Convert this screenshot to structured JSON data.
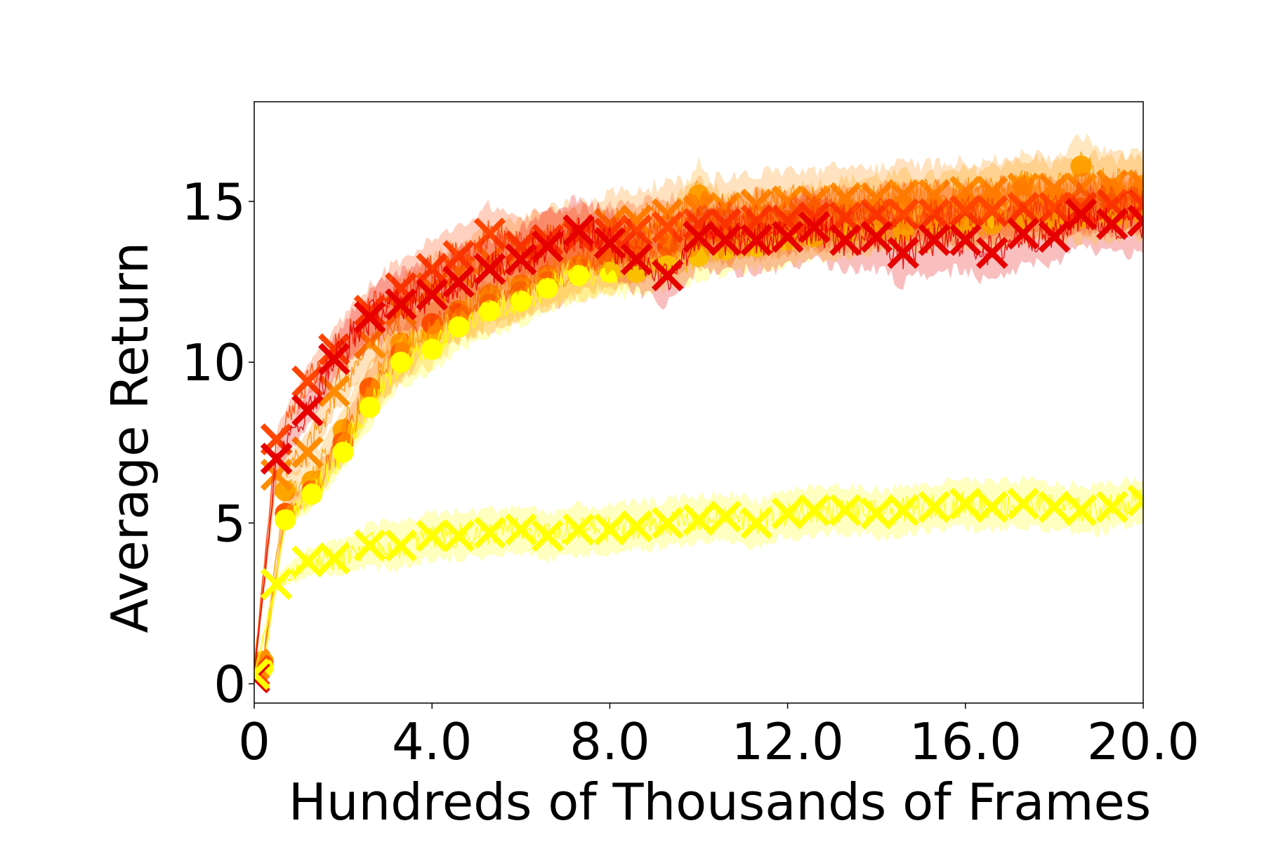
{
  "chart_data": {
    "type": "line",
    "title": "",
    "xlabel": "Hundreds of Thousands of Frames",
    "ylabel": "Average Return",
    "xlim": [
      0,
      20
    ],
    "ylim": [
      -0.6,
      18.1
    ],
    "x_ticks": [
      0,
      4,
      8,
      12,
      16,
      20
    ],
    "x_tick_labels": [
      "0",
      "4.0",
      "8.0",
      "12.0",
      "16.0",
      "20.0"
    ],
    "y_ticks": [
      0,
      5,
      10,
      15
    ],
    "y_tick_labels": [
      "0",
      "5",
      "10",
      "15"
    ],
    "grid": false,
    "legend": "none",
    "series": [
      {
        "color": "#ffa500",
        "marker": "circle",
        "band": 1.2,
        "x": [
          0,
          0.2,
          0.7,
          1.3,
          2.0,
          2.6,
          3.3,
          4.0,
          4.6,
          5.3,
          6.0,
          6.6,
          7.3,
          8.0,
          8.6,
          9.3,
          10.0,
          10.6,
          11.3,
          12.0,
          12.6,
          13.3,
          14.0,
          14.6,
          15.3,
          16.0,
          16.6,
          17.3,
          18.0,
          18.6,
          19.3,
          20.0
        ],
        "y": [
          0.6,
          0.7,
          6.0,
          6.3,
          7.9,
          9.1,
          10.6,
          10.9,
          11.6,
          12.1,
          12.4,
          12.7,
          13.0,
          13.2,
          13.5,
          13.7,
          15.2,
          14.1,
          14.3,
          14.4,
          14.6,
          14.7,
          14.8,
          14.9,
          14.8,
          15.0,
          15.1,
          15.5,
          15.2,
          16.1,
          15.4,
          15.5
        ]
      },
      {
        "color": "#ff5a00",
        "marker": "circle",
        "band": 1.0,
        "x": [
          0,
          0.2,
          0.7,
          1.3,
          2.0,
          2.6,
          3.3,
          4.0,
          4.6,
          5.3,
          6.0,
          6.6,
          7.3,
          8.0,
          8.6,
          9.3,
          10.0,
          10.6,
          11.3,
          12.0,
          12.6,
          13.3,
          14.0,
          14.6,
          15.3,
          16.0,
          16.6,
          17.3,
          18.0,
          18.6,
          19.3,
          20.0
        ],
        "y": [
          0.5,
          0.6,
          5.3,
          6.0,
          7.5,
          9.2,
          10.3,
          11.2,
          11.5,
          11.8,
          12.2,
          12.5,
          12.9,
          13.2,
          13.3,
          13.6,
          13.8,
          13.9,
          14.0,
          14.2,
          14.3,
          14.3,
          14.4,
          14.4,
          14.8,
          14.6,
          14.6,
          14.7,
          14.7,
          14.8,
          14.9,
          15.0
        ]
      },
      {
        "color": "#ffff00",
        "marker": "circle",
        "band": 0.9,
        "x": [
          0,
          0.2,
          0.7,
          1.3,
          2.0,
          2.6,
          3.3,
          4.0,
          4.6,
          5.3,
          6.0,
          6.6,
          7.3,
          8.0,
          8.6,
          9.3,
          10.0,
          10.6,
          11.3,
          12.0,
          12.6,
          13.3,
          14.0,
          14.6,
          15.3,
          16.0,
          16.6,
          17.3,
          18.0,
          18.6,
          19.3,
          20.0
        ],
        "y": [
          0.4,
          0.5,
          5.1,
          5.9,
          7.2,
          8.6,
          10.0,
          10.4,
          11.1,
          11.6,
          11.9,
          12.3,
          12.7,
          12.8,
          12.8,
          13.0,
          13.3,
          13.5,
          13.6,
          13.8,
          13.9,
          14.0,
          14.1,
          14.1,
          14.2,
          14.3,
          14.3,
          14.4,
          14.4,
          14.5,
          14.5,
          14.6
        ]
      },
      {
        "color": "#ff8c00",
        "marker": "x",
        "band": 1.2,
        "x": [
          0,
          0.5,
          1.2,
          1.8,
          2.6,
          3.3,
          4.0,
          4.6,
          5.3,
          6.0,
          6.6,
          7.3,
          8.0,
          8.6,
          9.3,
          10.0,
          10.6,
          11.3,
          12.0,
          12.6,
          13.3,
          14.0,
          14.6,
          15.3,
          16.0,
          16.6,
          17.3,
          18.0,
          18.6,
          19.3,
          20.0
        ],
        "y": [
          0.6,
          6.5,
          7.2,
          9.1,
          10.6,
          11.6,
          12.3,
          12.8,
          13.2,
          13.5,
          13.8,
          14.0,
          14.3,
          14.4,
          14.6,
          14.7,
          14.8,
          14.9,
          15.0,
          15.0,
          15.1,
          15.1,
          15.2,
          15.2,
          15.3,
          15.3,
          15.4,
          15.4,
          15.4,
          15.5,
          15.5
        ]
      },
      {
        "color": "#ff4500",
        "marker": "x",
        "band": 1.1,
        "x": [
          0,
          0.5,
          1.2,
          1.8,
          2.6,
          3.3,
          4.0,
          4.6,
          5.3,
          6.0,
          6.6,
          7.3,
          8.0,
          8.6,
          9.3,
          10.0,
          10.6,
          11.3,
          12.0,
          12.6,
          13.3,
          14.0,
          14.6,
          15.3,
          16.0,
          16.6,
          17.3,
          18.0,
          18.6,
          19.3,
          20.0
        ],
        "y": [
          0.4,
          7.6,
          9.4,
          10.4,
          11.6,
          12.3,
          12.9,
          13.3,
          14.0,
          13.6,
          13.8,
          13.9,
          14.0,
          14.1,
          14.2,
          14.3,
          14.3,
          14.4,
          14.4,
          14.5,
          14.5,
          14.6,
          14.6,
          14.6,
          14.7,
          14.7,
          14.8,
          14.8,
          14.8,
          14.9,
          14.9
        ]
      },
      {
        "color": "#e60000",
        "marker": "x",
        "band": 1.2,
        "x": [
          0,
          0.5,
          1.2,
          1.8,
          2.6,
          3.3,
          4.0,
          4.6,
          5.3,
          6.0,
          6.6,
          7.3,
          8.0,
          8.6,
          9.3,
          10.0,
          10.6,
          11.3,
          12.0,
          12.6,
          13.3,
          14.0,
          14.6,
          15.3,
          16.0,
          16.6,
          17.3,
          18.0,
          18.6,
          19.3,
          20.0
        ],
        "y": [
          0.2,
          7.0,
          8.5,
          10.1,
          11.4,
          11.8,
          12.1,
          12.5,
          12.9,
          13.2,
          13.6,
          14.1,
          13.7,
          13.2,
          12.7,
          13.9,
          13.8,
          13.8,
          13.9,
          14.2,
          13.8,
          13.9,
          13.4,
          13.8,
          13.8,
          13.4,
          14.0,
          13.9,
          14.6,
          14.3,
          14.4
        ]
      },
      {
        "color": "#ffff00",
        "marker": "x",
        "band": 0.9,
        "x": [
          0,
          0.5,
          1.2,
          1.8,
          2.6,
          3.3,
          4.0,
          4.6,
          5.3,
          6.0,
          6.6,
          7.3,
          8.0,
          8.6,
          9.3,
          10.0,
          10.6,
          11.3,
          12.0,
          12.6,
          13.3,
          14.0,
          14.6,
          15.3,
          16.0,
          16.6,
          17.3,
          18.0,
          18.6,
          19.3,
          20.0
        ],
        "y": [
          0.3,
          3.1,
          3.8,
          3.9,
          4.3,
          4.3,
          4.6,
          4.6,
          4.7,
          4.8,
          4.6,
          4.8,
          4.8,
          4.9,
          5.0,
          5.1,
          5.2,
          5.0,
          5.3,
          5.4,
          5.4,
          5.3,
          5.4,
          5.5,
          5.6,
          5.5,
          5.6,
          5.5,
          5.4,
          5.5,
          5.7
        ]
      }
    ]
  }
}
